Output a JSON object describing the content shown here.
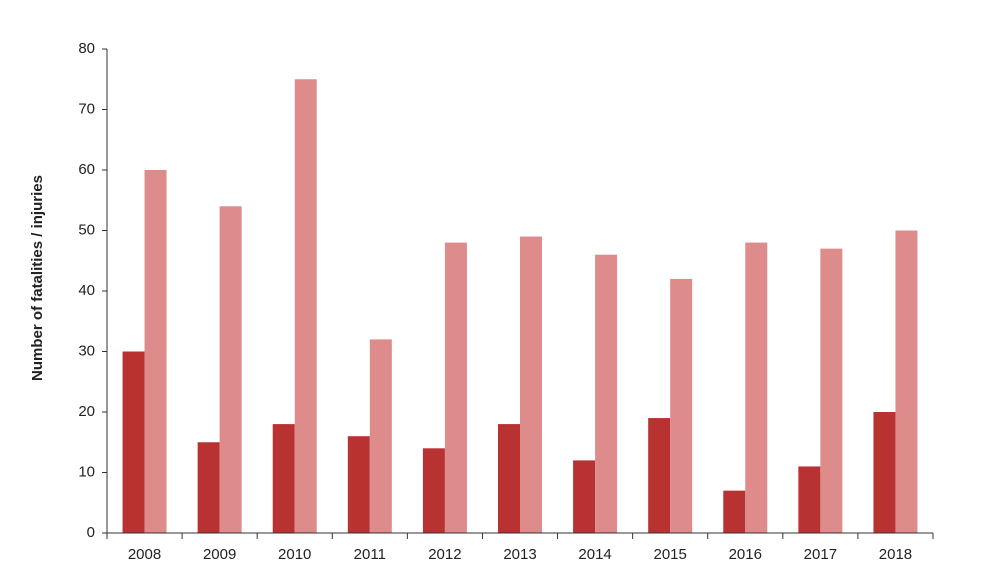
{
  "chart_data": {
    "type": "bar",
    "ylabel": "Number  of fatalities  / injuries",
    "categories": [
      "2008",
      "2009",
      "2010",
      "2011",
      "2012",
      "2013",
      "2014",
      "2015",
      "2016",
      "2017",
      "2018"
    ],
    "series": [
      {
        "color": "#b83232",
        "values": [
          30,
          15,
          18,
          16,
          14,
          18,
          12,
          19,
          7,
          11,
          20
        ]
      },
      {
        "color": "#de8b8b",
        "values": [
          60,
          54,
          75,
          32,
          48,
          49,
          46,
          42,
          48,
          47,
          50
        ]
      }
    ],
    "ylim": [
      0,
      80
    ],
    "yticks": [
      0,
      10,
      20,
      30,
      40,
      50,
      60,
      70,
      80
    ],
    "grid": false
  }
}
